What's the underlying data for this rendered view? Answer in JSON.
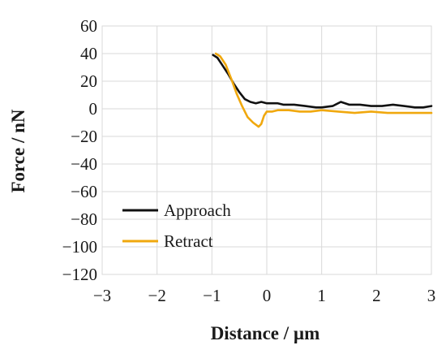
{
  "chart_data": {
    "type": "line",
    "title": "",
    "xlabel": "Distance / µm",
    "ylabel": "Force / nN",
    "xlim": [
      -3,
      3
    ],
    "ylim": [
      -120,
      60
    ],
    "xticks": [
      -3,
      -2,
      -1,
      0,
      1,
      2,
      3
    ],
    "yticks": [
      60,
      40,
      20,
      0,
      -20,
      -40,
      -60,
      -80,
      -100,
      -120
    ],
    "grid": true,
    "legend_position": "bottom-left",
    "series": [
      {
        "name": "Approach",
        "color": "#111111",
        "x": [
          -0.98,
          -0.9,
          -0.8,
          -0.7,
          -0.6,
          -0.5,
          -0.4,
          -0.3,
          -0.2,
          -0.1,
          0.0,
          0.1,
          0.2,
          0.3,
          0.5,
          0.7,
          0.9,
          1.0,
          1.2,
          1.35,
          1.5,
          1.7,
          1.9,
          2.1,
          2.3,
          2.5,
          2.7,
          2.85,
          3.0
        ],
        "y": [
          39,
          37,
          31,
          25,
          18,
          12,
          7,
          5,
          4,
          5,
          4,
          4,
          4,
          3,
          3,
          2,
          1,
          1,
          2,
          5,
          3,
          3,
          2,
          2,
          3,
          2,
          1,
          1,
          2
        ]
      },
      {
        "name": "Retract",
        "color": "#f0a80e",
        "x": [
          -0.93,
          -0.85,
          -0.75,
          -0.65,
          -0.55,
          -0.45,
          -0.35,
          -0.25,
          -0.15,
          -0.1,
          -0.05,
          0.0,
          0.1,
          0.2,
          0.4,
          0.6,
          0.8,
          1.0,
          1.3,
          1.6,
          1.9,
          2.2,
          2.5,
          2.8,
          3.0
        ],
        "y": [
          40,
          38,
          32,
          22,
          11,
          2,
          -6,
          -10,
          -13,
          -11,
          -5,
          -2,
          -2,
          -1,
          -1,
          -2,
          -2,
          -1,
          -2,
          -3,
          -2,
          -3,
          -3,
          -3,
          -3
        ]
      }
    ]
  }
}
